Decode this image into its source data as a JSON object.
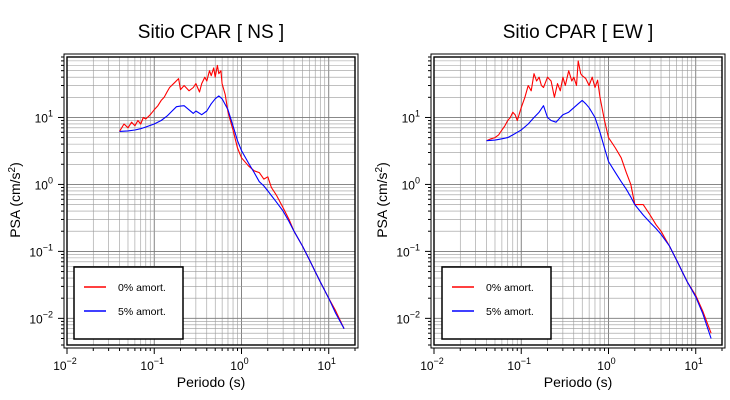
{
  "charts": [
    {
      "title": "Sitio CPAR [ NS ]",
      "xlabel": "Periodo (s)",
      "ylabel_main": "PSA (cm/s",
      "ylabel_sup": "2",
      "ylabel_end": ")",
      "legend": [
        "0% amort.",
        "5% amort."
      ]
    },
    {
      "title": "Sitio CPAR [ EW ]",
      "xlabel": "Periodo (s)",
      "ylabel_main": "PSA (cm/s",
      "ylabel_sup": "2",
      "ylabel_end": ")",
      "legend": [
        "0% amort.",
        "5% amort."
      ]
    }
  ],
  "chart_data": [
    {
      "type": "line",
      "title": "Sitio CPAR [ NS ]",
      "xlabel": "Periodo (s)",
      "ylabel": "PSA (cm/s2)",
      "xscale": "log",
      "yscale": "log",
      "xlim": [
        0.01,
        20
      ],
      "ylim": [
        0.004,
        80
      ],
      "xticks": [
        "10^-2",
        "10^-1",
        "10^0",
        "10^1"
      ],
      "yticks": [
        "10^-2",
        "10^-1",
        "10^0",
        "10^1"
      ],
      "grid": true,
      "legend_position": "bottom-left",
      "series": [
        {
          "name": "0% amort.",
          "color": "#ff0000",
          "x": [
            0.04,
            0.045,
            0.05,
            0.055,
            0.06,
            0.065,
            0.07,
            0.075,
            0.08,
            0.09,
            0.1,
            0.11,
            0.12,
            0.13,
            0.14,
            0.15,
            0.17,
            0.19,
            0.2,
            0.22,
            0.25,
            0.28,
            0.3,
            0.33,
            0.35,
            0.38,
            0.4,
            0.43,
            0.45,
            0.48,
            0.5,
            0.53,
            0.55,
            0.58,
            0.6,
            0.65,
            0.7,
            0.8,
            0.9,
            1.0,
            1.2,
            1.4,
            1.6,
            1.8,
            2.0,
            2.2,
            2.5,
            3.0,
            3.5,
            4.0,
            5.0,
            6.0,
            7.0,
            8.0,
            10.0,
            12.0,
            15.0
          ],
          "y": [
            6.2,
            8.0,
            7.0,
            8.5,
            7.5,
            9.0,
            8.0,
            10.0,
            9.5,
            11,
            13,
            15,
            18,
            20,
            24,
            28,
            33,
            38,
            26,
            30,
            25,
            28,
            32,
            24,
            32,
            40,
            35,
            50,
            42,
            55,
            40,
            60,
            45,
            50,
            32,
            22,
            12,
            6.5,
            3.5,
            2.5,
            1.9,
            1.6,
            1.5,
            1.2,
            1.3,
            0.9,
            0.7,
            0.45,
            0.3,
            0.2,
            0.12,
            0.075,
            0.05,
            0.035,
            0.02,
            0.013,
            0.007
          ]
        },
        {
          "name": "5% amort.",
          "color": "#0000ff",
          "x": [
            0.04,
            0.05,
            0.06,
            0.07,
            0.08,
            0.1,
            0.12,
            0.14,
            0.16,
            0.18,
            0.2,
            0.22,
            0.25,
            0.28,
            0.3,
            0.35,
            0.4,
            0.45,
            0.5,
            0.55,
            0.6,
            0.7,
            0.8,
            0.9,
            1.0,
            1.2,
            1.4,
            1.6,
            1.8,
            2.0,
            2.5,
            3.0,
            3.5,
            4.0,
            5.0,
            6.0,
            7.0,
            8.0,
            10.0,
            12.0,
            15.0
          ],
          "y": [
            6.2,
            6.3,
            6.5,
            6.8,
            7.2,
            8.0,
            9.0,
            10.5,
            12.5,
            14.5,
            14.8,
            15,
            13,
            11.5,
            12.5,
            11,
            12.5,
            16,
            19,
            21,
            19,
            13,
            7.5,
            4.5,
            3.2,
            2.1,
            1.5,
            1.1,
            0.95,
            0.8,
            0.55,
            0.4,
            0.28,
            0.2,
            0.12,
            0.075,
            0.05,
            0.035,
            0.02,
            0.012,
            0.007
          ]
        }
      ]
    },
    {
      "type": "line",
      "title": "Sitio CPAR [ EW ]",
      "xlabel": "Periodo (s)",
      "ylabel": "PSA (cm/s2)",
      "xscale": "log",
      "yscale": "log",
      "xlim": [
        0.01,
        20
      ],
      "ylim": [
        0.004,
        80
      ],
      "xticks": [
        "10^-2",
        "10^-1",
        "10^0",
        "10^1"
      ],
      "yticks": [
        "10^-2",
        "10^-1",
        "10^0",
        "10^1"
      ],
      "grid": true,
      "legend_position": "bottom-left",
      "series": [
        {
          "name": "0% amort.",
          "color": "#ff0000",
          "x": [
            0.04,
            0.045,
            0.05,
            0.055,
            0.06,
            0.065,
            0.07,
            0.075,
            0.08,
            0.085,
            0.09,
            0.1,
            0.11,
            0.12,
            0.13,
            0.14,
            0.15,
            0.16,
            0.17,
            0.18,
            0.2,
            0.22,
            0.24,
            0.26,
            0.28,
            0.3,
            0.32,
            0.35,
            0.38,
            0.4,
            0.43,
            0.45,
            0.48,
            0.5,
            0.55,
            0.6,
            0.65,
            0.7,
            0.75,
            0.8,
            0.9,
            1.0,
            1.2,
            1.4,
            1.6,
            1.8,
            2.0,
            2.5,
            3.0,
            3.5,
            4.0,
            5.0,
            6.0,
            7.0,
            8.0,
            10.0,
            12.0,
            15.0
          ],
          "y": [
            4.5,
            4.8,
            5.0,
            5.5,
            6.5,
            7.5,
            9.0,
            10,
            12,
            11,
            9,
            14,
            20,
            30,
            25,
            45,
            35,
            40,
            30,
            28,
            40,
            35,
            20,
            32,
            25,
            40,
            30,
            50,
            35,
            40,
            30,
            70,
            45,
            42,
            38,
            30,
            40,
            28,
            36,
            20,
            9,
            5.0,
            3.5,
            2.5,
            1.5,
            1.0,
            0.5,
            0.5,
            0.35,
            0.25,
            0.2,
            0.12,
            0.075,
            0.05,
            0.035,
            0.022,
            0.013,
            0.006
          ]
        },
        {
          "name": "5% amort.",
          "color": "#0000ff",
          "x": [
            0.04,
            0.05,
            0.06,
            0.07,
            0.08,
            0.09,
            0.1,
            0.12,
            0.14,
            0.16,
            0.18,
            0.2,
            0.22,
            0.25,
            0.28,
            0.3,
            0.35,
            0.4,
            0.45,
            0.5,
            0.55,
            0.6,
            0.7,
            0.8,
            0.9,
            1.0,
            1.2,
            1.4,
            1.6,
            1.8,
            2.0,
            2.5,
            3.0,
            3.5,
            4.0,
            5.0,
            6.0,
            7.0,
            8.0,
            10.0,
            12.0,
            15.0
          ],
          "y": [
            4.5,
            4.6,
            4.8,
            5.0,
            5.5,
            6.0,
            6.5,
            8.0,
            10,
            12,
            15,
            10,
            9,
            8.5,
            10,
            11,
            12,
            14,
            16,
            18,
            16,
            14,
            10,
            6.0,
            3.5,
            2.2,
            1.5,
            1.1,
            0.85,
            0.65,
            0.5,
            0.35,
            0.27,
            0.22,
            0.18,
            0.12,
            0.075,
            0.05,
            0.035,
            0.021,
            0.012,
            0.005
          ]
        }
      ]
    }
  ]
}
